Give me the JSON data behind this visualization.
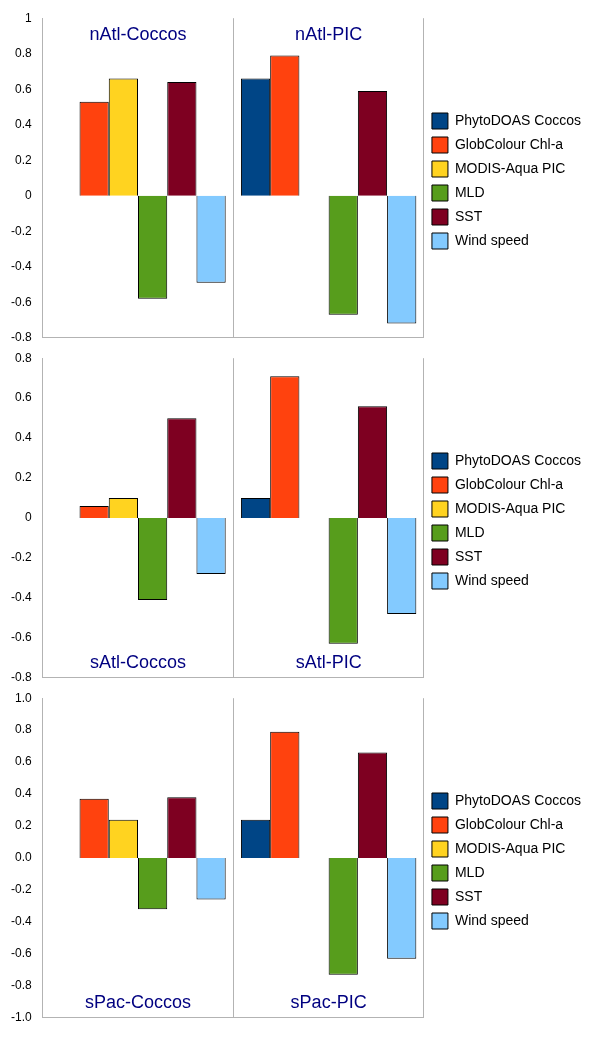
{
  "chart_data": [
    {
      "type": "bar",
      "categories": [
        "nAtl-Coccos",
        "nAtl-PIC"
      ],
      "series": [
        {
          "name": "PhytoDOAS Coccos",
          "color": "#004586",
          "values": [
            null,
            0.66
          ]
        },
        {
          "name": "GlobColour Chl-a",
          "color": "#ff420e",
          "values": [
            0.53,
            0.79
          ]
        },
        {
          "name": "MODIS-Aqua PIC",
          "color": "#ffd320",
          "values": [
            0.66,
            null
          ]
        },
        {
          "name": "MLD",
          "color": "#579d1c",
          "values": [
            -0.58,
            -0.67
          ]
        },
        {
          "name": "SST",
          "color": "#7e0021",
          "values": [
            0.64,
            0.59
          ]
        },
        {
          "name": "Wind speed",
          "color": "#83caff",
          "values": [
            -0.49,
            -0.72
          ]
        }
      ],
      "ylim": [
        -0.8,
        1
      ],
      "yticks": [
        -0.8,
        -0.6,
        -0.4,
        -0.2,
        0,
        0.2,
        0.4,
        0.6,
        0.8,
        1
      ],
      "grid": "x",
      "legend": "right",
      "tick_labels": "y"
    },
    {
      "type": "bar",
      "categories": [
        "sAtl-Coccos",
        "sAtl-PIC"
      ],
      "series": [
        {
          "name": "PhytoDOAS Coccos",
          "color": "#004586",
          "values": [
            null,
            0.1
          ]
        },
        {
          "name": "GlobColour Chl-a",
          "color": "#ff420e",
          "values": [
            0.06,
            0.71
          ]
        },
        {
          "name": "MODIS-Aqua PIC",
          "color": "#ffd320",
          "values": [
            0.1,
            null
          ]
        },
        {
          "name": "MLD",
          "color": "#579d1c",
          "values": [
            -0.41,
            -0.63
          ]
        },
        {
          "name": "SST",
          "color": "#7e0021",
          "values": [
            0.5,
            0.56
          ]
        },
        {
          "name": "Wind speed",
          "color": "#83caff",
          "values": [
            -0.28,
            -0.48
          ]
        }
      ],
      "ylim": [
        -0.8,
        0.8
      ],
      "yticks": [
        -0.8,
        -0.6,
        -0.4,
        -0.2,
        0,
        0.2,
        0.4,
        0.6,
        0.8
      ],
      "grid": "x",
      "legend": "right",
      "tick_labels": "y"
    },
    {
      "type": "bar",
      "categories": [
        "sPac-Coccos",
        "sPac-PIC"
      ],
      "series": [
        {
          "name": "PhytoDOAS Coccos",
          "color": "#004586",
          "values": [
            null,
            0.24
          ]
        },
        {
          "name": "GlobColour Chl-a",
          "color": "#ff420e",
          "values": [
            0.37,
            0.79
          ]
        },
        {
          "name": "MODIS-Aqua PIC",
          "color": "#ffd320",
          "values": [
            0.24,
            null
          ]
        },
        {
          "name": "MLD",
          "color": "#579d1c",
          "values": [
            -0.32,
            -0.73
          ]
        },
        {
          "name": "SST",
          "color": "#7e0021",
          "values": [
            0.38,
            0.66
          ]
        },
        {
          "name": "Wind speed",
          "color": "#83caff",
          "values": [
            -0.26,
            -0.63
          ]
        }
      ],
      "ylim": [
        -1,
        1
      ],
      "yticks": [
        {
          "value": -1,
          "label": "-1.0"
        },
        {
          "value": -0.8,
          "label": "-0.8"
        },
        {
          "value": -0.6,
          "label": "-0.6"
        },
        {
          "value": -0.4,
          "label": "-0.4"
        },
        {
          "value": -0.2,
          "label": "-0.2"
        },
        {
          "value": 0,
          "label": "0.0"
        },
        {
          "value": 0.2,
          "label": "0.2"
        },
        {
          "value": 0.4,
          "label": "0.4"
        },
        {
          "value": 0.6,
          "label": "0.6"
        },
        {
          "value": 0.8,
          "label": "0.8"
        },
        {
          "value": 1,
          "label": "1.0"
        }
      ],
      "grid": "x",
      "legend": "right",
      "tick_labels": "y"
    }
  ]
}
